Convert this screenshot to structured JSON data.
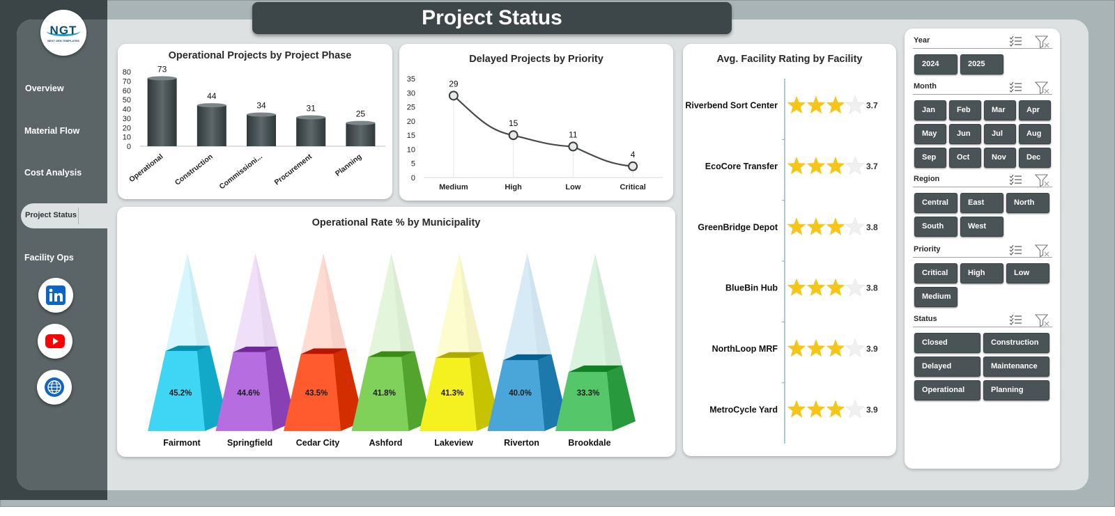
{
  "app": {
    "title": "Project Status",
    "logo_text": "NGT",
    "logo_subtext": "NEXT GEN TEMPLATES"
  },
  "nav": {
    "items": [
      {
        "label": "Overview"
      },
      {
        "label": "Material Flow"
      },
      {
        "label": "Cost Analysis"
      },
      {
        "label": "Project Status",
        "active": true
      },
      {
        "label": "Facility Ops"
      }
    ],
    "social": [
      "linkedin-icon",
      "youtube-icon",
      "globe-icon"
    ]
  },
  "colors": {
    "sidebar": "#5b6567",
    "title_bar": "#3d4749",
    "slicer_button": "#4a5457",
    "star": "#f5c518",
    "line": "#4a4a4a"
  },
  "charts": {
    "phase": {
      "title": "Operational Projects by Project Phase",
      "chart_data": {
        "type": "bar",
        "categories": [
          "Operational",
          "Construction",
          "Commissioni...",
          "Procurement",
          "Planning"
        ],
        "values": [
          73,
          44,
          34,
          31,
          25
        ],
        "ylim": [
          0,
          80
        ],
        "yticks": [
          0,
          10,
          20,
          30,
          40,
          50,
          60,
          70,
          80
        ]
      }
    },
    "priority": {
      "title": "Delayed Projects by Priority",
      "chart_data": {
        "type": "line",
        "categories": [
          "Medium",
          "High",
          "Low",
          "Critical"
        ],
        "values": [
          29,
          15,
          11,
          4
        ],
        "ylim": [
          0,
          35
        ],
        "yticks": [
          0,
          5,
          10,
          15,
          20,
          25,
          30,
          35
        ]
      }
    },
    "municipality": {
      "title": "Operational Rate % by Municipality",
      "chart_data": {
        "type": "bar",
        "categories": [
          "Fairmont",
          "Springfield",
          "Cedar City",
          "Ashford",
          "Lakeview",
          "Riverton",
          "Brookdale"
        ],
        "values": [
          45.2,
          44.6,
          43.5,
          41.8,
          41.3,
          40.0,
          33.3
        ],
        "labels": [
          "45.2%",
          "44.6%",
          "43.5%",
          "41.8%",
          "41.3%",
          "40.0%",
          "33.3%"
        ],
        "colors": [
          "#3fd6f5",
          "#b56de0",
          "#ff5b2e",
          "#7fd15a",
          "#f5f020",
          "#4aa6d8",
          "#55c76a"
        ]
      }
    },
    "facility": {
      "title": "Avg. Facility Rating by Facility",
      "chart_data": {
        "type": "bar",
        "categories": [
          "Riverbend Sort Center",
          "EcoCore Transfer",
          "GreenBridge Depot",
          "BlueBin Hub",
          "NorthLoop MRF",
          "MetroCycle Yard"
        ],
        "values": [
          3.7,
          3.7,
          3.8,
          3.8,
          3.9,
          3.9
        ],
        "labels": [
          "3.7",
          "3.7",
          "3.8",
          "3.8",
          "3.9",
          "3.9"
        ],
        "max": 5
      }
    }
  },
  "slicers": {
    "year": {
      "title": "Year",
      "options": [
        "2024",
        "2025"
      ]
    },
    "month": {
      "title": "Month",
      "options": [
        "Jan",
        "Feb",
        "Mar",
        "Apr",
        "May",
        "Jun",
        "Jul",
        "Aug",
        "Sep",
        "Oct",
        "Nov",
        "Dec"
      ]
    },
    "region": {
      "title": "Region",
      "options": [
        "Central",
        "East",
        "North",
        "South",
        "West"
      ]
    },
    "priority": {
      "title": "Priority",
      "options": [
        "Critical",
        "High",
        "Low",
        "Medium"
      ]
    },
    "status": {
      "title": "Status",
      "options": [
        "Closed",
        "Construction",
        "Delayed",
        "Maintenance",
        "Operational",
        "Planning"
      ]
    }
  }
}
